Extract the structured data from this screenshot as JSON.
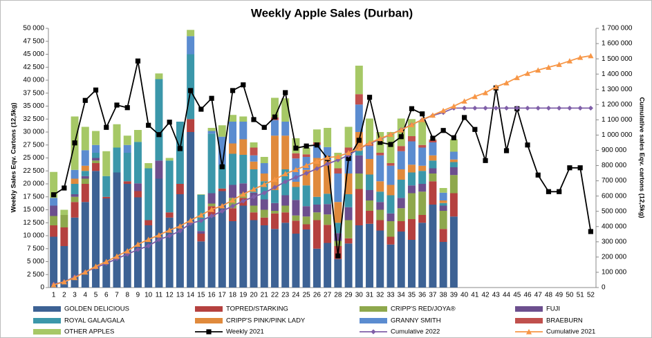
{
  "chart_data": {
    "type": "bar",
    "title": "Weekly Apple Sales (Durban)",
    "y_label": "Weekly Sales Eqv. Cartons (12,5kg)",
    "y2_label": "Cumulative sales Eqv. cartons (12,5kg)",
    "categories": [
      "1",
      "2",
      "3",
      "4",
      "5",
      "6",
      "7",
      "8",
      "9",
      "10",
      "11",
      "12",
      "13",
      "14",
      "15",
      "16",
      "17",
      "18",
      "19",
      "20",
      "21",
      "22",
      "23",
      "24",
      "25",
      "26",
      "27",
      "28",
      "29",
      "30",
      "31",
      "32",
      "33",
      "34",
      "35",
      "36",
      "37",
      "38",
      "39",
      "40",
      "41",
      "42",
      "43",
      "44",
      "45",
      "46",
      "47",
      "48",
      "49",
      "50",
      "51",
      "52"
    ],
    "ylim": [
      0,
      50000
    ],
    "yticks": [
      0,
      {
        "value": 2500,
        "label": "2 500"
      },
      {
        "value": 5000,
        "label": "5 000"
      },
      {
        "value": 7500,
        "label": "7 500"
      },
      {
        "value": 10000,
        "label": "10 000"
      },
      {
        "value": 12500,
        "label": "12 500"
      },
      {
        "value": 15000,
        "label": "15 000"
      },
      {
        "value": 17500,
        "label": "17 500"
      },
      {
        "value": 20000,
        "label": "20 000"
      },
      {
        "value": 22500,
        "label": "22 500"
      },
      {
        "value": 25000,
        "label": "25 000"
      },
      {
        "value": 27500,
        "label": "27 500"
      },
      {
        "value": 30000,
        "label": "30 000"
      },
      {
        "value": 32500,
        "label": "32 500"
      },
      {
        "value": 35000,
        "label": "35 000"
      },
      {
        "value": 37500,
        "label": "37 500"
      },
      {
        "value": 40000,
        "label": "40 000"
      },
      {
        "value": 42500,
        "label": "42 500"
      },
      {
        "value": 45000,
        "label": "45 000"
      },
      {
        "value": 47500,
        "label": "47 500"
      },
      {
        "value": 50000,
        "label": "50 000"
      }
    ],
    "y2lim": [
      0,
      1700000
    ],
    "y2ticks": [
      0,
      {
        "value": 100000,
        "label": "100 000"
      },
      {
        "value": 200000,
        "label": "200 000"
      },
      {
        "value": 300000,
        "label": "300 000"
      },
      {
        "value": 400000,
        "label": "400 000"
      },
      {
        "value": 500000,
        "label": "500 000"
      },
      {
        "value": 600000,
        "label": "600 000"
      },
      {
        "value": 700000,
        "label": "700 000"
      },
      {
        "value": 800000,
        "label": "800 000"
      },
      {
        "value": 900000,
        "label": "900 000"
      },
      {
        "value": 1000000,
        "label": "1 000 000"
      },
      {
        "value": 1100000,
        "label": "1 100 000"
      },
      {
        "value": 1200000,
        "label": "1 200 000"
      },
      {
        "value": 1300000,
        "label": "1 300 000"
      },
      {
        "value": 1400000,
        "label": "1 400 000"
      },
      {
        "value": 1500000,
        "label": "1 500 000"
      },
      {
        "value": 1600000,
        "label": "1 600 000"
      },
      {
        "value": 1700000,
        "label": "1 700 000"
      }
    ],
    "series": [
      {
        "name": "GOLDEN DELICIOUS",
        "color": "#3d6294",
        "type": "bar",
        "values": [
          9800,
          8000,
          13500,
          16500,
          22500,
          17200,
          22200,
          20000,
          17400,
          12000,
          21000,
          13500,
          18000,
          30000,
          8900,
          13700,
          18600,
          12800,
          15800,
          13000,
          12000,
          11300,
          12500,
          10400,
          11200,
          7500,
          8600,
          5500,
          8500,
          12000,
          12300,
          11000,
          8300,
          10800,
          9200,
          12500,
          16000,
          8800,
          13700,
          null,
          null,
          null,
          null,
          null,
          null,
          null,
          null,
          null,
          null,
          null,
          null,
          null
        ]
      },
      {
        "name": "TOPRED/STARKING",
        "color": "#b5413f",
        "type": "bar",
        "values": [
          2200,
          3600,
          3000,
          3500,
          1500,
          300,
          0,
          500,
          1200,
          1000,
          0,
          1000,
          2000,
          2500,
          1500,
          2000,
          500,
          2500,
          1500,
          1500,
          1500,
          3000,
          2000,
          2500,
          1000,
          5500,
          3500,
          2500,
          1000,
          7000,
          2500,
          2000,
          1500,
          2000,
          4000,
          1500,
          4500,
          2500,
          4500,
          null,
          null,
          null,
          null,
          null,
          null,
          null,
          null,
          null,
          null,
          null,
          null,
          null
        ]
      },
      {
        "name": "CRIPP'S RED/JOYA®",
        "color": "#8ea84c",
        "type": "bar",
        "values": [
          1800,
          2400,
          1000,
          1000,
          500,
          0,
          0,
          0,
          0,
          0,
          0,
          0,
          0,
          0,
          0,
          500,
          0,
          2000,
          800,
          1300,
          1500,
          500,
          1300,
          1000,
          1500,
          1500,
          2000,
          1000,
          3500,
          3000,
          2000,
          2000,
          3000,
          2500,
          5000,
          4500,
          1500,
          3500,
          3500,
          null,
          null,
          null,
          null,
          null,
          null,
          null,
          null,
          null,
          null,
          null,
          null,
          null
        ]
      },
      {
        "name": "FUJI",
        "color": "#6c4f8e",
        "type": "bar",
        "values": [
          2000,
          0,
          500,
          500,
          500,
          0,
          0,
          0,
          1500,
          0,
          3500,
          0,
          0,
          0,
          500,
          2000,
          0,
          2500,
          2000,
          2500,
          2000,
          1500,
          2000,
          3000,
          2000,
          1500,
          2000,
          1500,
          2500,
          3500,
          2000,
          1500,
          1500,
          2000,
          1500,
          1500,
          1000,
          1000,
          1500,
          null,
          null,
          null,
          null,
          null,
          null,
          null,
          null,
          null,
          null,
          null,
          null,
          null
        ]
      },
      {
        "name": "ROYAL GALA/GALA",
        "color": "#3b97aa",
        "type": "bar",
        "values": [
          0,
          0,
          2000,
          1000,
          1000,
          4000,
          4800,
          5500,
          8000,
          10000,
          15700,
          10000,
          12000,
          12500,
          7000,
          11500,
          4500,
          6000,
          5500,
          4500,
          3500,
          2500,
          5000,
          2500,
          4000,
          1500,
          2000,
          2000,
          2500,
          1000,
          3000,
          2000,
          3500,
          3500,
          2500,
          2500,
          1500,
          500,
          1000,
          null,
          null,
          null,
          null,
          null,
          null,
          null,
          null,
          null,
          null,
          null,
          null,
          null
        ]
      },
      {
        "name": "CRIPP'S PINK/PINK LADY",
        "color": "#e08a3c",
        "type": "bar",
        "values": [
          0,
          0,
          1000,
          1000,
          0,
          0,
          0,
          0,
          0,
          0,
          0,
          0,
          0,
          0,
          0,
          0,
          0,
          2000,
          3000,
          1500,
          1500,
          10500,
          6500,
          1000,
          3000,
          7500,
          6500,
          4000,
          4000,
          3500,
          3000,
          2000,
          2000,
          2000,
          1500,
          1000,
          1000,
          500,
          500,
          null,
          null,
          null,
          null,
          null,
          null,
          null,
          null,
          null,
          null,
          null,
          null,
          null
        ]
      },
      {
        "name": "GRANNY SMITH",
        "color": "#5b8cd0",
        "type": "bar",
        "values": [
          1500,
          0,
          1700,
          3000,
          1500,
          0,
          0,
          1500,
          0,
          0,
          0,
          0,
          0,
          3500,
          0,
          500,
          5500,
          4200,
          3400,
          1200,
          2000,
          3000,
          2700,
          4500,
          2500,
          2500,
          2500,
          5500,
          4000,
          5300,
          2500,
          5000,
          3700,
          3500,
          4500,
          3500,
          2500,
          1500,
          1500,
          null,
          null,
          null,
          null,
          null,
          null,
          null,
          null,
          null,
          null,
          null,
          null,
          null
        ]
      },
      {
        "name": "BRAEBURN",
        "color": "#c0504d",
        "type": "bar",
        "values": [
          0,
          0,
          0,
          0,
          0,
          0,
          0,
          0,
          0,
          0,
          0,
          0,
          0,
          0,
          0,
          0,
          0,
          0,
          0,
          1500,
          0,
          500,
          0,
          1000,
          500,
          500,
          0,
          1000,
          1000,
          2000,
          500,
          500,
          500,
          1000,
          1000,
          500,
          500,
          0,
          0,
          null,
          null,
          null,
          null,
          null,
          null,
          null,
          null,
          null,
          null,
          null,
          null,
          null
        ]
      },
      {
        "name": "OTHER APPLES",
        "color": "#a6c866",
        "type": "bar",
        "values": [
          5000,
          1000,
          10300,
          4500,
          2700,
          4800,
          4500,
          1800,
          2300,
          1000,
          1100,
          500,
          0,
          1200,
          100,
          600,
          2200,
          1300,
          1000,
          1000,
          1200,
          3800,
          4500,
          2900,
          1300,
          2500,
          3700,
          3000,
          4000,
          5500,
          4800,
          4000,
          6000,
          5300,
          3300,
          4500,
          100,
          900,
          2400,
          null,
          null,
          null,
          null,
          null,
          null,
          null,
          null,
          null,
          null,
          null,
          null,
          null
        ]
      },
      {
        "name": "Weekly 2021",
        "color": "#000000",
        "type": "line",
        "marker": "square",
        "values": [
          17900,
          19200,
          27900,
          36100,
          38100,
          30900,
          35200,
          34700,
          43700,
          31300,
          29500,
          31900,
          26800,
          38000,
          34400,
          36500,
          23300,
          38000,
          39100,
          32400,
          30900,
          32900,
          37600,
          26900,
          27300,
          27500,
          24900,
          6100,
          24900,
          28400,
          36700,
          28000,
          27600,
          29100,
          34500,
          33500,
          28800,
          30300,
          28900,
          32800,
          30500,
          24500,
          38500,
          26400,
          34500,
          27500,
          21700,
          18500,
          18500,
          23100,
          23100,
          10800
        ]
      },
      {
        "name": "Cumulative 2022",
        "color": "#7f5fa8",
        "type": "line",
        "marker": "diamond",
        "axis": "y2",
        "values": [
          22300,
          37300,
          70300,
          101300,
          131500,
          157800,
          189300,
          218600,
          249000,
          273000,
          314300,
          339300,
          371300,
          421000,
          439000,
          469800,
          501100,
          534400,
          567400,
          595400,
          620600,
          657200,
          693700,
          722500,
          749500,
          780000,
          810800,
          836800,
          867800,
          910600,
          943200,
          973200,
          1003200,
          1035800,
          1068300,
          1100300,
          1128900,
          1148100,
          1176700,
          1176700,
          1176700,
          1176700,
          1176700,
          1176700,
          1176700,
          1176700,
          1176700,
          1176700,
          1176700,
          1176700,
          1176700,
          1176700
        ]
      },
      {
        "name": "Cumulative 2021",
        "color": "#f79646",
        "type": "line",
        "marker": "triangle",
        "axis": "y2",
        "values": [
          17900,
          37100,
          65000,
          101100,
          139200,
          170100,
          205300,
          240000,
          283700,
          315000,
          344500,
          376400,
          403200,
          441200,
          475600,
          512100,
          535400,
          573400,
          612500,
          644900,
          675800,
          708700,
          746300,
          773200,
          800500,
          828000,
          852900,
          859000,
          883900,
          912300,
          949000,
          977000,
          1004600,
          1033700,
          1068200,
          1101700,
          1130500,
          1160800,
          1189700,
          1222500,
          1253000,
          1277500,
          1316000,
          1342400,
          1376900,
          1404400,
          1426100,
          1444600,
          1463100,
          1486200,
          1509300,
          1520100
        ]
      }
    ]
  }
}
